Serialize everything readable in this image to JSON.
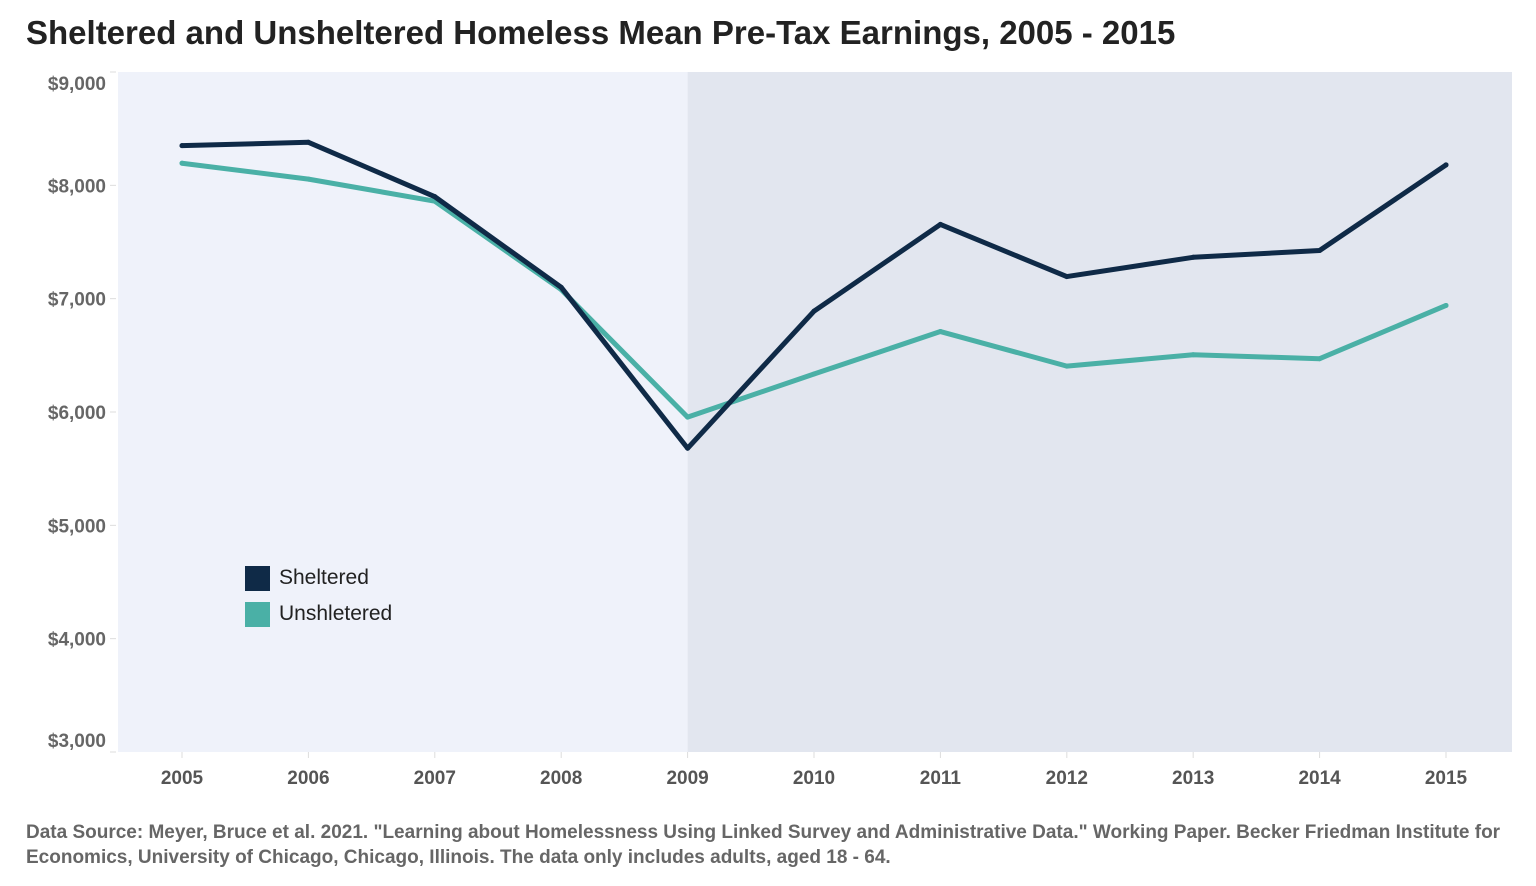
{
  "chart_data": {
    "type": "line",
    "title": "Sheltered and Unsheltered Homeless Mean Pre-Tax Earnings, 2005 - 2015",
    "xlabel": "",
    "ylabel": "",
    "x": [
      "2005",
      "2006",
      "2007",
      "2008",
      "2009",
      "2010",
      "2011",
      "2012",
      "2013",
      "2014",
      "2015"
    ],
    "ylim": [
      3000,
      9000
    ],
    "yticks": [
      9000,
      8000,
      7000,
      6000,
      5000,
      4000,
      3000
    ],
    "ytick_labels": [
      "$9,000",
      "$8,000",
      "$7,000",
      "$6,000",
      "$5,000",
      "$4,000",
      "$3,000"
    ],
    "grid": false,
    "legend_position": "bottom-left",
    "shaded_from": "2009",
    "colors": {
      "background_early": "#eff2fa",
      "background_late": "#e2e6ef"
    },
    "series": [
      {
        "name": "Sheltered",
        "color": "#0f2a47",
        "values": [
          8350,
          8380,
          7900,
          7100,
          5680,
          6890,
          7655,
          7195,
          7365,
          7425,
          8180
        ]
      },
      {
        "name": "Unshletered",
        "color": "#4ab0a6",
        "values": [
          8195,
          8055,
          7860,
          7080,
          5955,
          6335,
          6710,
          6405,
          6505,
          6470,
          6940
        ]
      }
    ]
  },
  "footnote": "Data Source: Meyer, Bruce et al. 2021. \"Learning about Homelessness Using Linked Survey and Administrative Data.\" Working Paper. Becker Friedman Institute for Economics, University of Chicago, Chicago, Illinois. The data only includes adults, aged 18 - 64."
}
